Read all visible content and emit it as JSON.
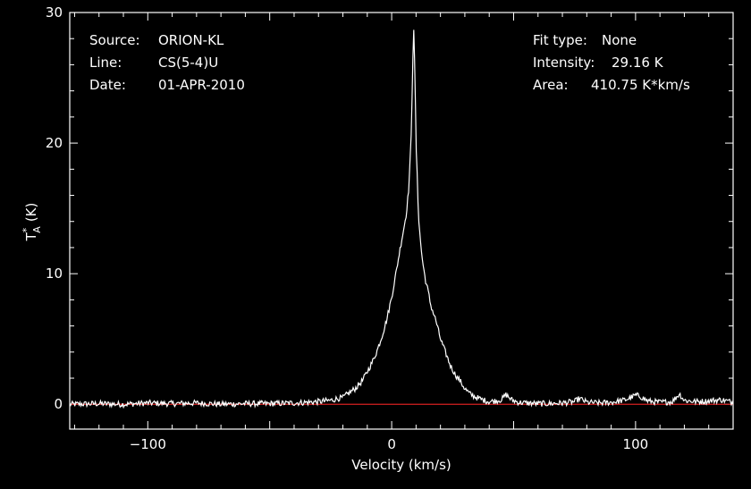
{
  "info": {
    "source_label": "Source:",
    "source_value": "ORION-KL",
    "line_label": "Line:",
    "line_value": "CS(5-4)U",
    "date_label": "Date:",
    "date_value": "01-APR-2010",
    "fit_label": "Fit type:",
    "fit_value": "None",
    "intensity_label": "Intensity:",
    "intensity_value": "29.16 K",
    "area_label": "Area:",
    "area_value": "410.75 K*km/s"
  },
  "chart_data": {
    "type": "line",
    "title": "",
    "xlabel": "Velocity (km/s)",
    "ylabel_main": "T",
    "ylabel_sup": "*",
    "ylabel_sub": "A",
    "ylabel_unit": "(K)",
    "xlim": [
      -132,
      140
    ],
    "ylim": [
      -1.9,
      30
    ],
    "xticks": [
      -100,
      0,
      100
    ],
    "xtick_labels": [
      "−100",
      "0",
      "100"
    ],
    "yticks": [
      0,
      10,
      20,
      30
    ],
    "ytick_labels": [
      "0",
      "10",
      "20",
      "30"
    ],
    "grid": false,
    "colors": {
      "spectrum": "#ffffff",
      "baseline": "#d42020",
      "axes": "#ffffff",
      "background": "#000000"
    },
    "series": [
      {
        "x": [
          -132,
          -120,
          -110,
          -100,
          -90,
          -80,
          -70,
          -60,
          -50,
          -40,
          -30,
          -25,
          -22,
          -20,
          -18,
          -15,
          -12,
          -10,
          -8,
          -6,
          -4,
          -2,
          0,
          2,
          4,
          5,
          6,
          7,
          8,
          8.5,
          9,
          9.5,
          10,
          11,
          12,
          13,
          14,
          15,
          16,
          18,
          20,
          22,
          24,
          26,
          28,
          30,
          32,
          35,
          38,
          40,
          42,
          45,
          47,
          49,
          52,
          55,
          60,
          65,
          70,
          75,
          77,
          80,
          85,
          90,
          95,
          98,
          100,
          102,
          105,
          110,
          115,
          117,
          118,
          120,
          125,
          130,
          135,
          140
        ],
        "values": [
          0.0,
          0.05,
          0.0,
          0.1,
          0.05,
          0.1,
          0.0,
          0.05,
          0.05,
          0.1,
          0.2,
          0.3,
          0.45,
          0.5,
          0.8,
          1.2,
          1.8,
          2.5,
          3.2,
          4.1,
          5.2,
          6.5,
          8.2,
          10.3,
          12.5,
          13.5,
          14.6,
          16.5,
          20.5,
          25.0,
          29.16,
          25.5,
          20.0,
          14.5,
          12.0,
          10.5,
          9.4,
          8.6,
          7.6,
          6.5,
          5.0,
          4.0,
          3.0,
          2.3,
          1.8,
          1.2,
          0.8,
          0.5,
          0.3,
          0.2,
          0.25,
          0.35,
          0.75,
          0.35,
          0.15,
          0.1,
          0.05,
          0.05,
          0.1,
          0.2,
          0.45,
          0.15,
          0.1,
          0.15,
          0.3,
          0.5,
          0.7,
          0.6,
          0.25,
          0.15,
          0.2,
          0.6,
          0.8,
          0.3,
          0.2,
          0.25,
          0.35,
          0.15
        ]
      }
    ],
    "baseline_value": 0
  }
}
